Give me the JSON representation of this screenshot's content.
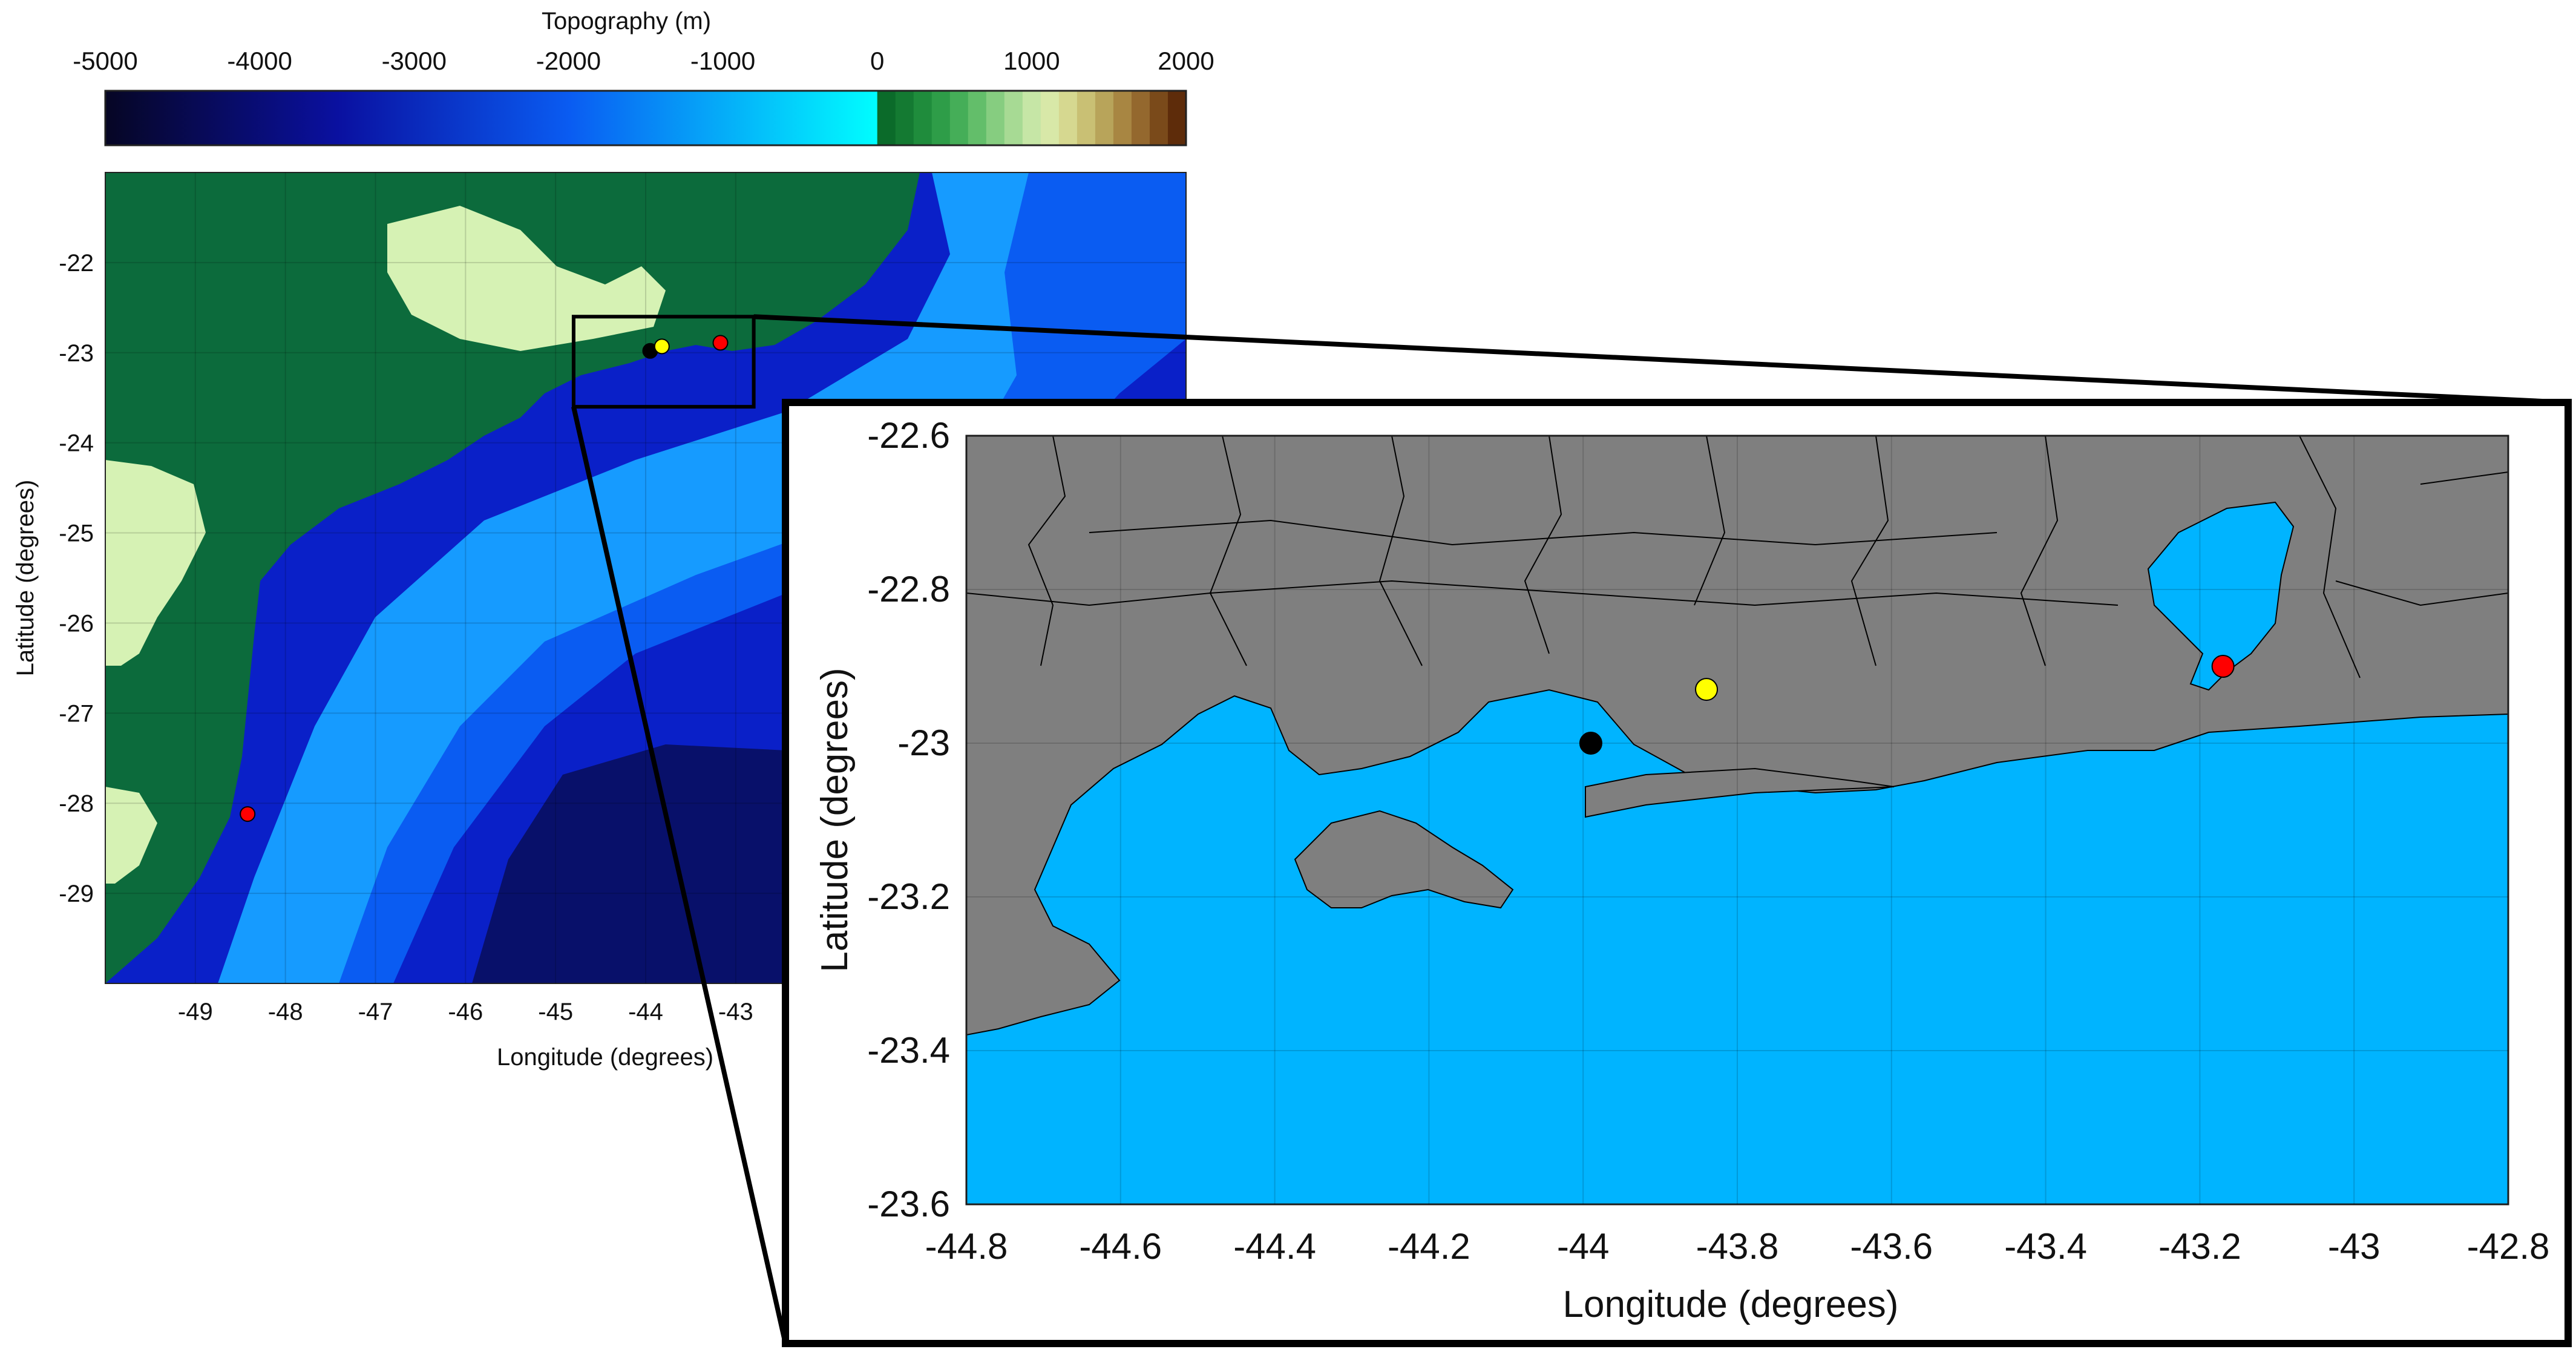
{
  "colorbar": {
    "title": "Topography (m)",
    "ticks": [
      "-5000",
      "-4000",
      "-3000",
      "-2000",
      "-1000",
      "0",
      "1000",
      "2000"
    ],
    "range": [
      -5000,
      2000
    ]
  },
  "regional_map": {
    "xlabel": "Longitude (degrees)",
    "ylabel": "Latitude (degrees)",
    "xlim": [
      -50,
      -38
    ],
    "ylim": [
      -30,
      -21
    ],
    "xticks": [
      "-49",
      "-48",
      "-47",
      "-46",
      "-45",
      "-44",
      "-43"
    ],
    "yticks": [
      "-22",
      "-23",
      "-24",
      "-25",
      "-26",
      "-27",
      "-28",
      "-29"
    ],
    "markers": [
      {
        "lon": -43.95,
        "lat": -22.98,
        "color": "#000000"
      },
      {
        "lon": -43.82,
        "lat": -22.93,
        "color": "#ffff00"
      },
      {
        "lon": -43.17,
        "lat": -22.89,
        "color": "#ff0000"
      },
      {
        "lon": -48.42,
        "lat": -28.12,
        "color": "#ff0000"
      }
    ],
    "inset_box": {
      "lon": [
        -44.8,
        -42.8
      ],
      "lat": [
        -23.6,
        -22.6
      ]
    }
  },
  "zoom_map": {
    "xlabel": "Longitude (degrees)",
    "ylabel": "Latitude (degrees)",
    "xlim": [
      -44.8,
      -42.8
    ],
    "ylim": [
      -23.6,
      -22.6
    ],
    "xticks": [
      "-44.8",
      "-44.6",
      "-44.4",
      "-44.2",
      "-44",
      "-43.8",
      "-43.6",
      "-43.4",
      "-43.2",
      "-43",
      "-42.8"
    ],
    "yticks": [
      "-22.6",
      "-22.8",
      "-23",
      "-23.2",
      "-23.4",
      "-23.6"
    ],
    "markers": [
      {
        "lon": -43.99,
        "lat": -23.0,
        "color": "#000000"
      },
      {
        "lon": -43.84,
        "lat": -22.93,
        "color": "#ffff00"
      },
      {
        "lon": -43.17,
        "lat": -22.9,
        "color": "#ff0000"
      }
    ]
  },
  "colors": {
    "land_regional": "#0c6b3c",
    "highland": "#d6f2b4",
    "shelf": "#169bff",
    "slope": "#0a5cf2",
    "abyss": "#0a20c8",
    "deep": "#08106a",
    "land_zoom": "#7f7f7f",
    "water_zoom": "#00b4ff"
  }
}
